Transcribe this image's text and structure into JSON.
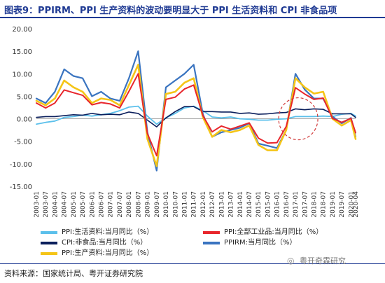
{
  "title": "图表9：PPIRM、PPI 生产资料的波动要明显大于 PPI 生活资料和 CPI 非食品项",
  "source": "资料来源：国家统计局、粤开证券研究院",
  "watermark": "粤开奇霖研究",
  "colors": {
    "title": "#1f3a93",
    "ppi_living": "#5bc0eb",
    "ppi_all": "#e8262c",
    "cpi_nonfood": "#0b1f5c",
    "ppi_production": "#f5c518",
    "ppirm": "#3a74c0",
    "highlight_circle": "#d23a3a"
  },
  "chart_data": {
    "type": "line",
    "ylim": [
      -15,
      20
    ],
    "yticks": [
      "20.00",
      "15.00",
      "10.00",
      "5.00",
      "0.00",
      "-5.00",
      "-10.00",
      "-15.00"
    ],
    "xlabels": [
      "2003-01",
      "2003-07",
      "2004-01",
      "2004-07",
      "2005-01",
      "2005-07",
      "2006-01",
      "2006-07",
      "2007-01",
      "2007-07",
      "2008-01",
      "2008-07",
      "2009-01",
      "2009-07",
      "2010-01",
      "2010-07",
      "2011-01",
      "2011-07",
      "2012-01",
      "2012-07",
      "2013-01",
      "2013-07",
      "2014-01",
      "2014-07",
      "2015-01",
      "2015-07",
      "2016-01",
      "2016-07",
      "2017-01",
      "2017-07",
      "2018-01",
      "2018-07",
      "2019-01",
      "2019-07",
      "2020-01",
      "2020-04"
    ],
    "x": [
      2003.0,
      2003.5,
      2004.0,
      2004.5,
      2005.0,
      2005.5,
      2006.0,
      2006.5,
      2007.0,
      2007.5,
      2008.0,
      2008.5,
      2009.0,
      2009.5,
      2010.0,
      2010.5,
      2011.0,
      2011.5,
      2012.0,
      2012.5,
      2013.0,
      2013.5,
      2014.0,
      2014.5,
      2015.0,
      2015.5,
      2016.0,
      2016.5,
      2017.0,
      2017.5,
      2018.0,
      2018.5,
      2019.0,
      2019.5,
      2020.0,
      2020.25
    ],
    "series": [
      {
        "name": "PPI:生活资料:当月同比（%）",
        "key": "ppi_living",
        "values": [
          -1.2,
          -0.8,
          -0.5,
          0.3,
          0.5,
          0.8,
          0.6,
          0.9,
          1.2,
          1.8,
          2.6,
          2.8,
          0.6,
          -1.2,
          0.2,
          1.2,
          2.4,
          2.8,
          1.8,
          0.4,
          0.2,
          0.4,
          0.0,
          -0.1,
          -0.3,
          -0.3,
          -0.1,
          0.0,
          0.5,
          0.5,
          0.5,
          0.6,
          0.5,
          1.0,
          1.2,
          0.6
        ]
      },
      {
        "name": "PPI:全部工业品:当月同比（%）",
        "key": "ppi_all",
        "values": [
          3.5,
          2.4,
          3.5,
          6.4,
          5.8,
          5.2,
          3.1,
          3.6,
          3.3,
          2.4,
          6.1,
          10.0,
          -3.3,
          -8.2,
          4.3,
          4.8,
          6.6,
          7.5,
          0.7,
          -2.9,
          -1.6,
          -2.3,
          -1.6,
          -0.9,
          -4.3,
          -5.4,
          -5.3,
          -1.7,
          6.9,
          5.5,
          4.3,
          4.6,
          0.1,
          -0.8,
          0.1,
          -3.1
        ]
      },
      {
        "name": "CPI:非食品:当月同比（%）",
        "key": "cpi_nonfood",
        "values": [
          0.3,
          0.5,
          0.5,
          0.7,
          0.9,
          0.8,
          1.2,
          0.9,
          1.0,
          0.9,
          1.5,
          1.2,
          -0.3,
          -1.8,
          0.2,
          1.6,
          2.7,
          2.7,
          1.6,
          1.6,
          1.5,
          1.5,
          1.2,
          1.3,
          1.0,
          1.1,
          1.3,
          1.4,
          2.2,
          2.0,
          2.2,
          2.1,
          1.1,
          1.1,
          1.1,
          0.3
        ]
      },
      {
        "name": "PPI:生产资料:当月同比（%）",
        "key": "ppi_production",
        "values": [
          4.0,
          3.0,
          4.5,
          8.5,
          7.0,
          6.0,
          3.5,
          4.5,
          4.2,
          3.0,
          7.5,
          12.0,
          -4.5,
          -10.5,
          5.5,
          6.0,
          8.0,
          9.0,
          0.3,
          -4.0,
          -2.5,
          -3.0,
          -2.5,
          -1.5,
          -5.8,
          -7.0,
          -7.0,
          -2.5,
          9.0,
          7.0,
          5.6,
          6.0,
          0.0,
          -1.5,
          -0.3,
          -4.5
        ]
      },
      {
        "name": "PPIRM:当月同比（%）",
        "key": "ppirm",
        "values": [
          4.5,
          3.5,
          6.0,
          11.0,
          9.5,
          9.0,
          5.0,
          6.0,
          4.5,
          4.0,
          9.0,
          15.0,
          -3.0,
          -11.5,
          7.0,
          8.5,
          10.0,
          12.0,
          1.0,
          -4.0,
          -3.0,
          -2.5,
          -2.0,
          -1.0,
          -5.5,
          -6.0,
          -6.5,
          -2.5,
          10.0,
          6.5,
          4.5,
          4.5,
          0.5,
          -1.0,
          0.2,
          -4.0
        ]
      }
    ]
  },
  "legend": [
    {
      "label": "PPI:生活资料:当月同比（%）",
      "color_key": "ppi_living"
    },
    {
      "label": "PPI:全部工业品:当月同比（%）",
      "color_key": "ppi_all"
    },
    {
      "label": "CPI:非食品:当月同比（%）",
      "color_key": "cpi_nonfood"
    },
    {
      "label": "PPIRM:当月同比（%）",
      "color_key": "ppirm"
    },
    {
      "label": "PPI:生产资料:当月同比（%）",
      "color_key": "ppi_production"
    }
  ],
  "annotation": {
    "type": "dashed-circle",
    "x": 2017.0,
    "y": 0.0
  }
}
